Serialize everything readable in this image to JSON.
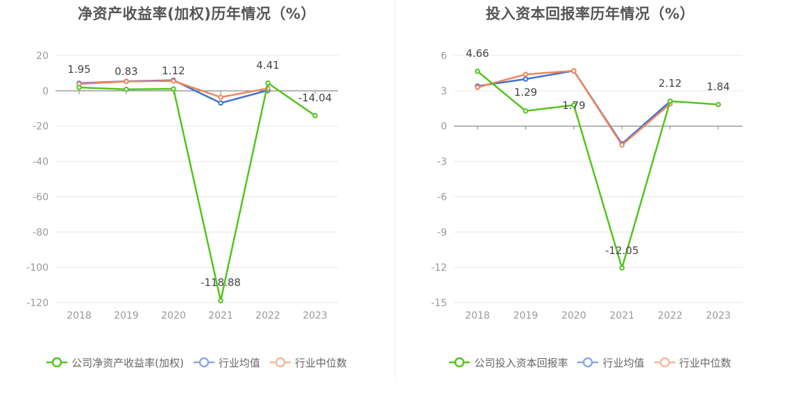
{
  "chart_data": [
    {
      "type": "line",
      "title": "净资产收益率(加权)历年情况（%）",
      "categories": [
        "2018",
        "2019",
        "2020",
        "2021",
        "2022",
        "2023"
      ],
      "ylim": [
        -120,
        20
      ],
      "yticks": [
        20,
        0,
        -20,
        -40,
        -60,
        -80,
        -100,
        -120
      ],
      "grid": true,
      "legend_position": "bottom",
      "series": [
        {
          "name": "公司净资产收益率(加权)",
          "color": "#52c41a",
          "values": [
            1.95,
            0.83,
            1.12,
            -118.88,
            4.41,
            -14.04
          ],
          "labels": [
            "1.95",
            "0.83",
            "1.12",
            "-118.88",
            "4.41",
            "-14.04"
          ]
        },
        {
          "name": "行业均值",
          "color": "#3d6fd9",
          "values": [
            4.3,
            5.4,
            6.0,
            -6.9,
            0.3,
            null
          ]
        },
        {
          "name": "行业中位数",
          "color": "#f0845c",
          "values": [
            3.9,
            5.3,
            5.6,
            -3.6,
            1.4,
            null
          ]
        }
      ]
    },
    {
      "type": "line",
      "title": "投入资本回报率历年情况（%）",
      "categories": [
        "2018",
        "2019",
        "2020",
        "2021",
        "2022",
        "2023"
      ],
      "ylim": [
        -15,
        6
      ],
      "yticks": [
        6,
        3,
        0,
        -3,
        -6,
        -9,
        -12,
        -15
      ],
      "grid": true,
      "legend_position": "bottom",
      "series": [
        {
          "name": "公司投入资本回报率",
          "color": "#52c41a",
          "values": [
            4.66,
            1.29,
            1.79,
            -12.05,
            2.12,
            1.84
          ],
          "labels": [
            "4.66",
            "1.29",
            "1.79",
            "-12.05",
            "2.12",
            "1.84"
          ]
        },
        {
          "name": "行业均值",
          "color": "#3d6fd9",
          "values": [
            3.4,
            4.0,
            4.7,
            -1.5,
            2.1,
            null
          ]
        },
        {
          "name": "行业中位数",
          "color": "#f0845c",
          "values": [
            3.3,
            4.4,
            4.7,
            -1.6,
            1.9,
            null
          ]
        }
      ]
    }
  ]
}
